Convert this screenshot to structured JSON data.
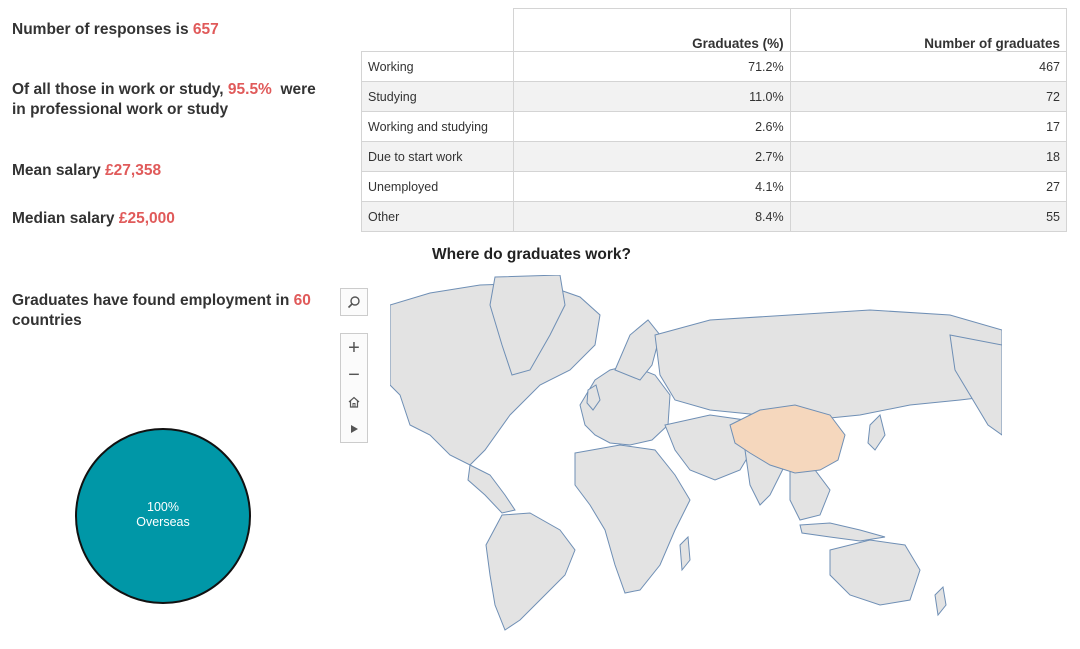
{
  "stats": {
    "responses_prefix": "Number of responses is ",
    "responses_value": "657",
    "professional_prefix": "Of all those in work or study, ",
    "professional_value": "95.5%",
    "professional_suffix": "  were in professional work or study",
    "mean_prefix": "Mean salary ",
    "mean_value": "£27,358",
    "median_prefix": "Median salary ",
    "median_value": "£25,000",
    "countries_prefix": "Graduates have found employment in ",
    "countries_value": "60",
    "countries_suffix": " countries"
  },
  "table": {
    "headers": [
      "",
      "Graduates (%)",
      "Number of graduates"
    ],
    "rows": [
      {
        "category": "Working",
        "percent": "71.2%",
        "count": "467"
      },
      {
        "category": "Studying",
        "percent": "11.0%",
        "count": "72"
      },
      {
        "category": "Working and studying",
        "percent": "2.6%",
        "count": "17"
      },
      {
        "category": "Due to start work",
        "percent": "2.7%",
        "count": "18"
      },
      {
        "category": "Unemployed",
        "percent": "4.1%",
        "count": "27"
      },
      {
        "category": "Other",
        "percent": "8.4%",
        "count": "55"
      }
    ]
  },
  "map": {
    "title": "Where do graduates work?",
    "highlighted_country": "China",
    "land_color": "#e3e3e3",
    "border_color": "#6f8fb5",
    "highlight_color": "#f5d7bd",
    "controls": {
      "search_icon": "search-icon",
      "zoom_in": "+",
      "zoom_out": "−",
      "home_icon": "home-icon",
      "play_icon": "play-icon"
    }
  },
  "chart_data": {
    "type": "pie",
    "categories": [
      "Overseas"
    ],
    "values": [
      100
    ],
    "labels": [
      "100%",
      "Overseas"
    ],
    "colors": [
      "#0097a7"
    ]
  }
}
